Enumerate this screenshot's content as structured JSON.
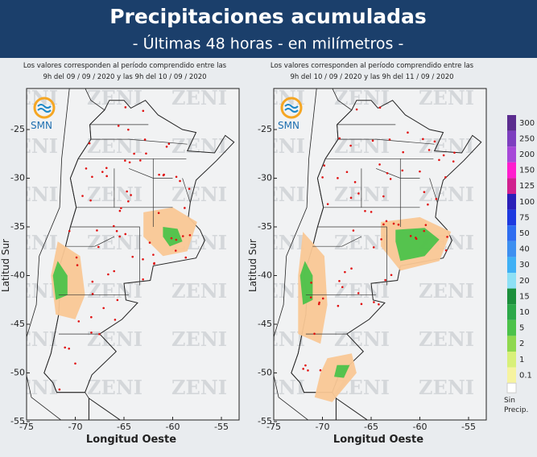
{
  "header": {
    "title": "Precipitaciones acumuladas",
    "subtitle": "- Últimas 48 horas - en milímetros -"
  },
  "logo": "SMN",
  "watermark": "ZENI",
  "panels": [
    {
      "note": [
        "Los valores corresponden al período comprendido entre las",
        "9h del 09 / 09 / 2020  y las 9h del 10 / 09 / 2020"
      ]
    },
    {
      "note": [
        "Los valores corresponden al período comprendido entre las",
        "9h del 10 / 09 / 2020  y las 9h del 11 / 09 / 2020"
      ]
    }
  ],
  "axes": {
    "y_label": "Latitud Sur",
    "x_label": "Longitud Oeste",
    "yticks": [
      -25,
      -30,
      -35,
      -40,
      -45,
      -50,
      -55
    ],
    "xticks": [
      -75,
      -70,
      -65,
      -60,
      -55
    ]
  },
  "legend": {
    "items": [
      {
        "label": 300,
        "color": "#5b2c8f"
      },
      {
        "label": 250,
        "color": "#7d3fbf"
      },
      {
        "label": 200,
        "color": "#a648d8"
      },
      {
        "label": 150,
        "color": "#ff1dce"
      },
      {
        "label": 125,
        "color": "#d0208f"
      },
      {
        "label": 100,
        "color": "#2a1fb8"
      },
      {
        "label": 75,
        "color": "#1d3ae0"
      },
      {
        "label": 50,
        "color": "#2e6df0"
      },
      {
        "label": 40,
        "color": "#3d8ff0"
      },
      {
        "label": 30,
        "color": "#3fb0f5"
      },
      {
        "label": 20,
        "color": "#8de0f5"
      },
      {
        "label": 15,
        "color": "#1c8f3c"
      },
      {
        "label": 10,
        "color": "#2ca84a"
      },
      {
        "label": 5,
        "color": "#4cc24a"
      },
      {
        "label": 2,
        "color": "#8fd84f"
      },
      {
        "label": 1,
        "color": "#d8f07a"
      },
      {
        "label": 0.1,
        "color": "#f6f3a0"
      }
    ],
    "none_label": [
      "Sin",
      "Precip."
    ]
  }
}
